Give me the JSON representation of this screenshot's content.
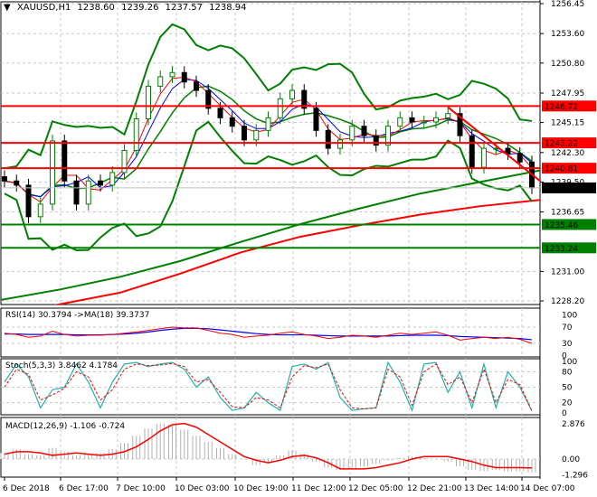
{
  "header": {
    "symbol": "XAUUSD,H1",
    "open": "1238.60",
    "high": "1239.26",
    "low": "1237.57",
    "close": "1238.94"
  },
  "chart_data": [
    {
      "type": "candlestick",
      "title": "XAUUSD,H1",
      "ylim": [
        1228.2,
        1256.45
      ],
      "y_ticks": [
        "1256.45",
        "1253.60",
        "1250.80",
        "1247.95",
        "1245.15",
        "1242.30",
        "1239.50",
        "1236.65",
        "1231.00",
        "1228.20"
      ],
      "x_ticks": [
        "6 Dec 2018",
        "6 Dec 17:00",
        "7 Dec 10:00",
        "10 Dec 03:00",
        "10 Dec 19:00",
        "11 Dec 12:00",
        "12 Dec 05:00",
        "12 Dec 21:00",
        "13 Dec 14:00",
        "14 Dec 07:00"
      ],
      "closes": [
        1239.6,
        1239.2,
        1236.2,
        1237.4,
        1243.4,
        1239.6,
        1237.4,
        1239.6,
        1239.2,
        1240.4,
        1242.5,
        1245.5,
        1248.6,
        1249.5,
        1249.9,
        1249.0,
        1248.2,
        1246.5,
        1245.6,
        1244.8,
        1243.5,
        1244.4,
        1245.6,
        1247.4,
        1248.2,
        1246.5,
        1244.4,
        1242.7,
        1243.5,
        1244.8,
        1243.9,
        1243.0,
        1244.8,
        1245.6,
        1245.2,
        1245.2,
        1245.6,
        1246.0,
        1243.9,
        1240.9,
        1242.7,
        1242.7,
        1242.2,
        1241.4,
        1238.94
      ],
      "ma_green": [
        1228.3,
        1229.3,
        1230.5,
        1232.0,
        1233.8,
        1235.5,
        1237.0,
        1238.4,
        1239.5,
        1240.6
      ],
      "ma_red": [
        1226.8,
        1227.9,
        1229.0,
        1230.8,
        1232.8,
        1234.3,
        1235.4,
        1236.4,
        1237.2,
        1237.8
      ],
      "levels": [
        {
          "value": 1246.72,
          "label": "1246.72",
          "color": "#ff0000"
        },
        {
          "value": 1243.22,
          "label": "1243.22",
          "color": "#ff0000"
        },
        {
          "value": 1240.81,
          "label": "1240.81",
          "color": "#ff0000"
        },
        {
          "value": 1235.46,
          "label": "1235.46",
          "color": "#008000"
        },
        {
          "value": 1233.24,
          "label": "1233.24",
          "color": "#008000"
        }
      ],
      "current_price": {
        "value": 1238.94,
        "label": "1238.94"
      },
      "trendline": {
        "from_index": 37,
        "from": 1246.6,
        "to": 1239.6
      }
    },
    {
      "type": "line",
      "title": "RSI(14) 30.3794  ->MA(18) 39.3737",
      "y_ticks": [
        "100",
        "70",
        "30",
        "0"
      ],
      "rsi": [
        55,
        52,
        45,
        48,
        60,
        52,
        48,
        50,
        50,
        52,
        55,
        58,
        62,
        66,
        70,
        68,
        68,
        62,
        55,
        52,
        45,
        48,
        50,
        55,
        58,
        52,
        48,
        42,
        45,
        50,
        48,
        45,
        50,
        55,
        52,
        55,
        58,
        50,
        38,
        42,
        45,
        42,
        45,
        40,
        30
      ],
      "ma": [
        53,
        53,
        52,
        52,
        52,
        52,
        51,
        51,
        51,
        52,
        53,
        55,
        58,
        62,
        65,
        67,
        67,
        66,
        63,
        60,
        57,
        54,
        52,
        51,
        51,
        51,
        50,
        49,
        48,
        48,
        48,
        48,
        48,
        49,
        50,
        50,
        50,
        49,
        47,
        46,
        45,
        44,
        43,
        42,
        39
      ]
    },
    {
      "type": "line",
      "title": "Stoch(5,3,3) 3.8462 4.1784",
      "y_ticks": [
        "100",
        "80",
        "50",
        "20",
        "0"
      ],
      "main": [
        60,
        95,
        70,
        10,
        45,
        50,
        95,
        60,
        10,
        60,
        95,
        98,
        90,
        95,
        98,
        85,
        50,
        70,
        30,
        5,
        10,
        40,
        20,
        5,
        90,
        95,
        85,
        98,
        30,
        5,
        8,
        10,
        98,
        60,
        5,
        95,
        98,
        40,
        80,
        10,
        95,
        10,
        80,
        50,
        4
      ],
      "signal": [
        50,
        85,
        75,
        25,
        35,
        48,
        80,
        70,
        25,
        45,
        85,
        95,
        92,
        93,
        96,
        90,
        60,
        65,
        40,
        12,
        10,
        30,
        25,
        10,
        70,
        92,
        88,
        95,
        45,
        10,
        8,
        10,
        85,
        70,
        15,
        80,
        95,
        55,
        70,
        20,
        85,
        20,
        65,
        55,
        4
      ]
    },
    {
      "type": "bar+line",
      "title": "MACD(12,26,9) -1.106 -0.724",
      "y_ticks": [
        "2.876",
        "0.00",
        "-1.296"
      ],
      "main": [
        0.5,
        0.8,
        0.4,
        0.3,
        0.9,
        0.6,
        0.3,
        0.4,
        0.5,
        0.8,
        1.3,
        1.9,
        2.5,
        2.9,
        2.8,
        2.4,
        1.9,
        1.4,
        0.9,
        0.4,
        0,
        -0.5,
        -0.3,
        0.3,
        0.7,
        0.4,
        -0.2,
        -0.7,
        -0.9,
        -0.8,
        -0.6,
        -0.4,
        -0.1,
        0.1,
        0.2,
        0.1,
        0,
        -0.2,
        -0.6,
        -0.9,
        -1.0,
        -0.9,
        -1.0,
        -1.0,
        -1.106
      ],
      "signal": [
        0.4,
        0.6,
        0.6,
        0.5,
        0.3,
        0.4,
        0.5,
        0.4,
        0.3,
        0.4,
        0.6,
        1.0,
        1.6,
        2.3,
        2.8,
        2.9,
        2.6,
        2.0,
        1.4,
        0.8,
        0.2,
        -0.1,
        -0.3,
        -0.1,
        0.2,
        0.3,
        0.1,
        -0.3,
        -0.8,
        -0.8,
        -0.8,
        -0.7,
        -0.5,
        -0.3,
        0,
        0.2,
        0.2,
        0.2,
        0,
        -0.2,
        -0.5,
        -0.7,
        -0.7,
        -0.7,
        -0.724
      ]
    }
  ]
}
